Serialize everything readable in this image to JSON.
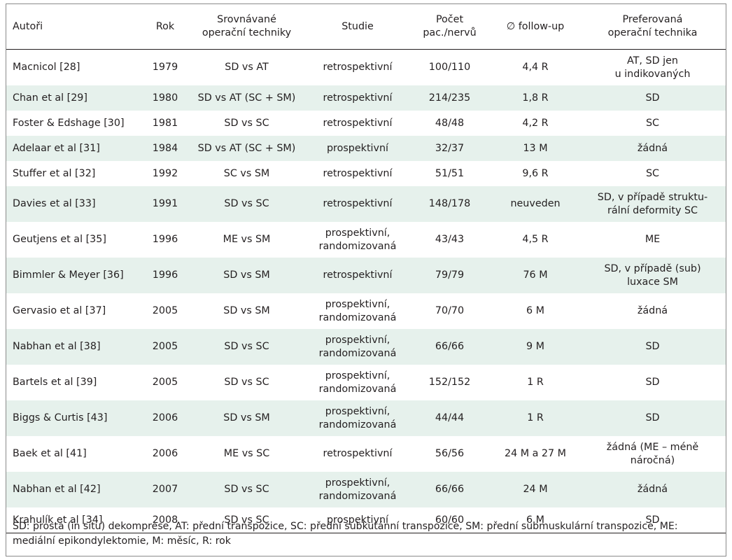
{
  "table": {
    "headers": [
      "Autoři",
      "Rok",
      "Srovnávané\noperační techniky",
      "Studie",
      "Počet\npac./nervů",
      "∅ follow-up",
      "Preferovaná\noperační technika"
    ],
    "rows": [
      [
        "Macnicol [28]",
        "1979",
        "SD vs AT",
        "retrospektivní",
        "100/110",
        "4,4 R",
        "AT, SD jen\nu indikovaných"
      ],
      [
        "Chan et al [29]",
        "1980",
        "SD vs AT (SC + SM)",
        "retrospektivní",
        "214/235",
        "1,8 R",
        "SD"
      ],
      [
        "Foster & Edshage [30]",
        "1981",
        "SD vs SC",
        "retrospektivní",
        "48/48",
        "4,2 R",
        "SC"
      ],
      [
        "Adelaar et al [31]",
        "1984",
        "SD vs AT (SC + SM)",
        "prospektivní",
        "32/37",
        "13 M",
        "žádná"
      ],
      [
        "Stuffer et al [32]",
        "1992",
        "SC vs SM",
        "retrospektivní",
        "51/51",
        "9,6 R",
        "SC"
      ],
      [
        "Davies et al [33]",
        "1991",
        "SD vs SC",
        "retrospektivní",
        "148/178",
        "neuveden",
        "SD, v případě struktu-\nrální deformity SC"
      ],
      [
        "Geutjens et al [35]",
        "1996",
        "ME vs SM",
        "prospektivní,\nrandomizovaná",
        "43/43",
        "4,5 R",
        "ME"
      ],
      [
        "Bimmler & Meyer [36]",
        "1996",
        "SD vs SM",
        "retrospektivní",
        "79/79",
        "76 M",
        "SD, v případě (sub)\nluxace SM"
      ],
      [
        "Gervasio et al [37]",
        "2005",
        "SD vs SM",
        "prospektivní,\nrandomizovaná",
        "70/70",
        "6 M",
        "žádná"
      ],
      [
        "Nabhan et al [38]",
        "2005",
        "SD vs SC",
        "prospektivní,\nrandomizovaná",
        "66/66",
        "9 M",
        "SD"
      ],
      [
        "Bartels et al [39]",
        "2005",
        "SD vs SC",
        "prospektivní,\nrandomizovaná",
        "152/152",
        "1 R",
        "SD"
      ],
      [
        "Biggs & Curtis [43]",
        "2006",
        "SD vs SM",
        "prospektivní,\nrandomizovaná",
        "44/44",
        "1 R",
        "SD"
      ],
      [
        "Baek et al [41]",
        "2006",
        "ME vs SC",
        "retrospektivní",
        "56/56",
        "24 M a 27 M",
        "žádná (ME – méně\nnáročná)"
      ],
      [
        "Nabhan et al [42]",
        "2007",
        "SD vs SC",
        "prospektivní,\nrandomizovaná",
        "66/66",
        "24 M",
        "žádná"
      ],
      [
        "Krahulík et al [34]",
        "2008",
        "SD vs SC",
        "prospektivní",
        "60/60",
        "6 M",
        "SD"
      ]
    ],
    "row_bg_alt": "#e6f1ec"
  },
  "footnote": "SD: prostá (in situ) dekomprese, AT: přední transpozice, SC: přední subkutánní transpozice, SM: přední submuskulární transpozice, ME: mediální epikondylektomie, M: měsíc, R: rok"
}
